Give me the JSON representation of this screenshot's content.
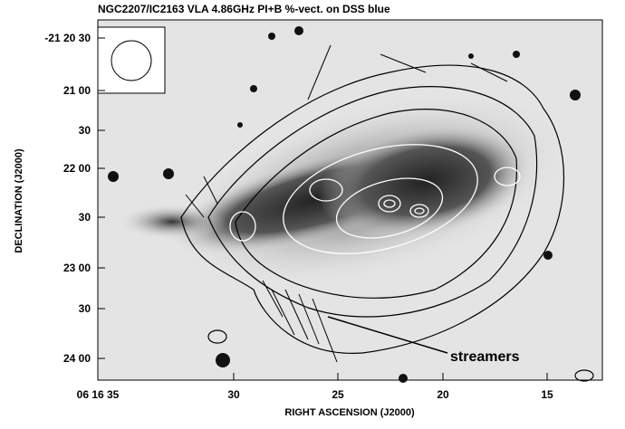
{
  "figure": {
    "title": "NGC2207/IC2163 VLA 4.86GHz PI+B %-vect. on DSS blue",
    "x_axis": {
      "label": "RIGHT ASCENSION (J2000)",
      "ticks": [
        "06 16 35",
        "30",
        "25",
        "20",
        "15"
      ]
    },
    "y_axis": {
      "label": "DECLINATION (J2000)",
      "ticks": [
        "-21 20 30",
        "21 00",
        "30",
        "22 00",
        "30",
        "23 00",
        "30",
        "24 00"
      ]
    },
    "annotation": "streamers"
  }
}
